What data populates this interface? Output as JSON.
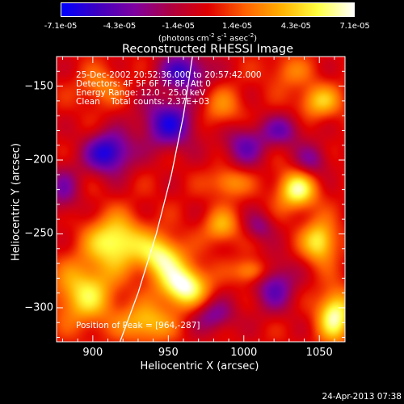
{
  "colorbar": {
    "tick_labels": [
      "-7.1e-05",
      "-4.3e-05",
      "-1.4e-05",
      "1.4e-05",
      "4.3e-05",
      "7.1e-05"
    ],
    "units_main": "(photons cm",
    "units_exp1": "-2",
    "units_mid": " s",
    "units_exp2": "-1",
    "units_mid2": " asec",
    "units_exp3": "-2",
    "units_end": ")",
    "range": [
      -7.1e-05,
      7.1e-05
    ],
    "colormap": [
      "#0000ff",
      "#4000c0",
      "#8000a0",
      "#b00040",
      "#e00000",
      "#ff6000",
      "#ffb000",
      "#ffff40",
      "#ffffff"
    ]
  },
  "chart_data": {
    "type": "heatmap",
    "title": "Reconstructed RHESSI Image",
    "xlabel": "Heliocentric X (arcsec)",
    "ylabel": "Heliocentric Y (arcsec)",
    "xlim": [
      876,
      1067
    ],
    "ylim": [
      -323,
      -130
    ],
    "x_ticks": [
      900,
      950,
      1000,
      1050
    ],
    "y_ticks": [
      -150,
      -200,
      -250,
      -300
    ],
    "x_tick_labels": [
      "900",
      "950",
      "1000",
      "1050"
    ],
    "y_tick_labels": [
      "−150",
      "−200",
      "−250",
      "−300"
    ],
    "grid": false,
    "limb": [
      [
        918,
        -323
      ],
      [
        930,
        -290
      ],
      [
        942,
        -250
      ],
      [
        952,
        -210
      ],
      [
        960,
        -170
      ],
      [
        966,
        -130
      ]
    ],
    "blobs": [
      {
        "x": 960,
        "y": -285,
        "amp": 1.0,
        "sx": 11,
        "sy": 10
      },
      {
        "x": 915,
        "y": -255,
        "amp": 0.85,
        "sx": 13,
        "sy": 12
      },
      {
        "x": 945,
        "y": -265,
        "amp": 0.8,
        "sx": 10,
        "sy": 10
      },
      {
        "x": 895,
        "y": -290,
        "amp": 0.7,
        "sx": 14,
        "sy": 15
      },
      {
        "x": 935,
        "y": -310,
        "amp": 0.6,
        "sx": 12,
        "sy": 9
      },
      {
        "x": 1035,
        "y": -220,
        "amp": 0.85,
        "sx": 9,
        "sy": 9
      },
      {
        "x": 1050,
        "y": -255,
        "amp": 0.75,
        "sx": 8,
        "sy": 10
      },
      {
        "x": 1060,
        "y": -305,
        "amp": 0.9,
        "sx": 8,
        "sy": 12
      },
      {
        "x": 1005,
        "y": -275,
        "amp": 0.55,
        "sx": 8,
        "sy": 6
      },
      {
        "x": 985,
        "y": -245,
        "amp": 0.5,
        "sx": 8,
        "sy": 8
      },
      {
        "x": 990,
        "y": -215,
        "amp": 0.45,
        "sx": 9,
        "sy": 7
      },
      {
        "x": 1050,
        "y": -160,
        "amp": 0.55,
        "sx": 10,
        "sy": 8
      },
      {
        "x": 905,
        "y": -150,
        "amp": 0.35,
        "sx": 10,
        "sy": 9
      },
      {
        "x": 985,
        "y": -165,
        "amp": 0.35,
        "sx": 10,
        "sy": 10
      },
      {
        "x": 1030,
        "y": -140,
        "amp": 0.3,
        "sx": 10,
        "sy": 8
      },
      {
        "x": 910,
        "y": -195,
        "amp": -0.9,
        "sx": 11,
        "sy": 10
      },
      {
        "x": 950,
        "y": -175,
        "amp": -0.8,
        "sx": 13,
        "sy": 12
      },
      {
        "x": 960,
        "y": -140,
        "amp": -0.75,
        "sx": 12,
        "sy": 9
      },
      {
        "x": 1000,
        "y": -190,
        "amp": -0.55,
        "sx": 10,
        "sy": 10
      },
      {
        "x": 1025,
        "y": -180,
        "amp": -0.5,
        "sx": 10,
        "sy": 8
      },
      {
        "x": 1020,
        "y": -285,
        "amp": -0.6,
        "sx": 10,
        "sy": 12
      },
      {
        "x": 980,
        "y": -305,
        "amp": -0.5,
        "sx": 10,
        "sy": 8
      },
      {
        "x": 1045,
        "y": -200,
        "amp": -0.45,
        "sx": 8,
        "sy": 8
      },
      {
        "x": 1010,
        "y": -245,
        "amp": -0.4,
        "sx": 7,
        "sy": 7
      },
      {
        "x": 880,
        "y": -220,
        "amp": -0.45,
        "sx": 8,
        "sy": 12
      }
    ],
    "annotations": {
      "line1": "25-Dec-2002 20:52:36.000 to 20:57:42.000",
      "line2": "Detectors: 4F 5F 6F 7F 8F, Att 0",
      "line3": "Energy Range: 12.0 - 25.0 keV",
      "line4": "Clean    Total counts: 2.37E+03",
      "peak": "Position of Peak = [964,-287]"
    }
  },
  "timestamp": "24-Apr-2013 07:38"
}
